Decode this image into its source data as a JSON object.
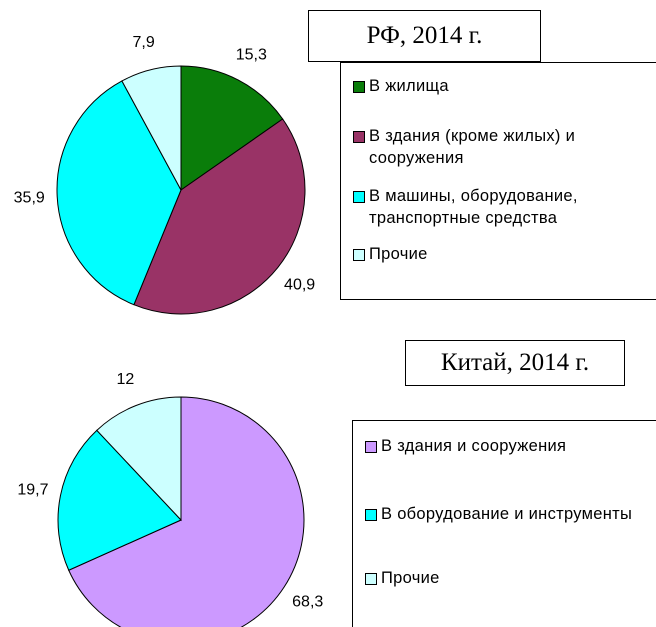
{
  "chart_data": [
    {
      "type": "pie",
      "title": "РФ, 2014 г.",
      "categories": [
        "В жилища",
        "В здания (кроме жилых) и сооружения",
        "В машины, оборудование, транспортные средства",
        "Прочие"
      ],
      "values": [
        15.3,
        40.9,
        35.9,
        7.9
      ],
      "value_labels": [
        "15,3",
        "40,9",
        "35,9",
        "7,9"
      ],
      "colors": [
        "#0a7d0a",
        "#993366",
        "#00ffff",
        "#ccffff"
      ]
    },
    {
      "type": "pie",
      "title": "Китай, 2014 г.",
      "categories": [
        "В здания и сооружения",
        "В оборудование и инструменты",
        "Прочие"
      ],
      "values": [
        68.3,
        19.7,
        12
      ],
      "value_labels": [
        "68,3",
        "19,7",
        "12"
      ],
      "colors": [
        "#cc99ff",
        "#00ffff",
        "#ccffff"
      ]
    }
  ]
}
